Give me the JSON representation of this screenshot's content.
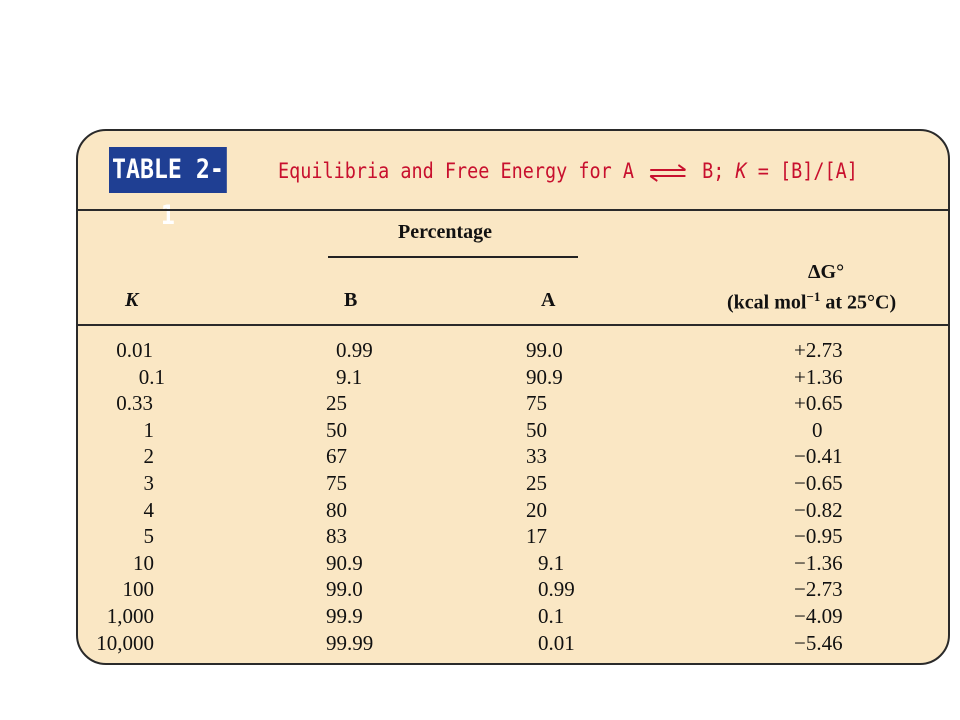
{
  "table": {
    "badge": "TABLE 2-1",
    "title_prefix": "Equilibria and Free Energy for A",
    "title_suffix_1": "B; ",
    "title_k": "K",
    "title_suffix_2": " = [B]/[A]",
    "colors": {
      "card_background": "#fae7c4",
      "badge_background": "#1f3f93",
      "title_text": "#c8102e"
    }
  },
  "headers": {
    "percentage": "Percentage",
    "k": "K",
    "b": "B",
    "a": "A",
    "dg_line1": "ΔG°",
    "dg_line2_pre": "(kcal mol",
    "dg_line2_sup": "−1",
    "dg_line2_post": " at 25°C)"
  },
  "rows": [
    {
      "k": "0.01",
      "b": "0.99",
      "a": "99.0",
      "dg": "+2.73"
    },
    {
      "k": "0.1",
      "b": "9.1",
      "a": "90.9",
      "dg": "+1.36"
    },
    {
      "k": "0.33",
      "b": "25",
      "a": "75",
      "dg": "+0.65"
    },
    {
      "k": "1",
      "b": "50",
      "a": "50",
      "dg": "0"
    },
    {
      "k": "2",
      "b": "67",
      "a": "33",
      "dg": "−0.41"
    },
    {
      "k": "3",
      "b": "75",
      "a": "25",
      "dg": "−0.65"
    },
    {
      "k": "4",
      "b": "80",
      "a": "20",
      "dg": "−0.82"
    },
    {
      "k": "5",
      "b": "83",
      "a": "17",
      "dg": "−0.95"
    },
    {
      "k": "10",
      "b": "90.9",
      "a": "9.1",
      "dg": "−1.36"
    },
    {
      "k": "100",
      "b": "99.0",
      "a": "0.99",
      "dg": "−2.73"
    },
    {
      "k": "1,000",
      "b": "99.9",
      "a": "0.1",
      "dg": "−4.09"
    },
    {
      "k": "10,000",
      "b": "99.99",
      "a": "0.01",
      "dg": "−5.46"
    }
  ]
}
